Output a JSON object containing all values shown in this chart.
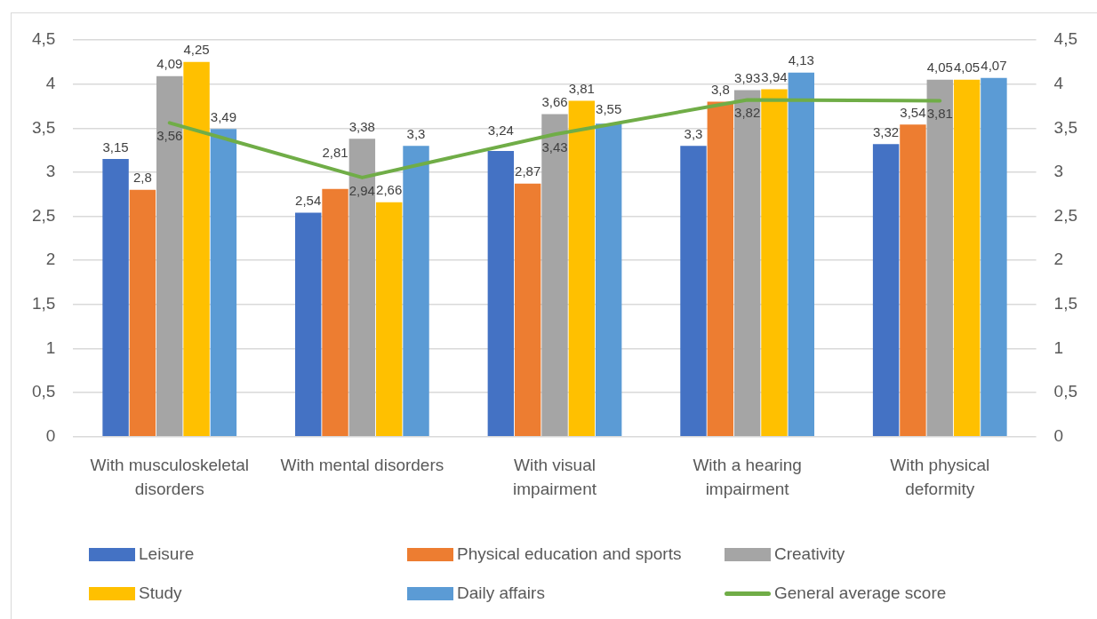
{
  "chart_data": {
    "type": "bar",
    "categories": [
      "With musculoskeletal disorders",
      "With mental disorders",
      "With visual impairment",
      "With a hearing impairment",
      "With physical deformity"
    ],
    "series": [
      {
        "name": "Leisure",
        "color": "#4472c4",
        "values": [
          3.15,
          2.54,
          3.24,
          3.3,
          3.32
        ],
        "value_labels": [
          "3,15",
          "2,54",
          "3,24",
          "3,3",
          "3,32"
        ]
      },
      {
        "name": "Physical education and sports",
        "color": "#ed7d31",
        "values": [
          2.8,
          2.81,
          2.87,
          3.8,
          3.54
        ],
        "value_labels": [
          "2,8",
          "2,81",
          "2,87",
          "3,8",
          "3,54"
        ]
      },
      {
        "name": "Creativity",
        "color": "#a5a5a5",
        "values": [
          4.09,
          3.38,
          3.66,
          3.93,
          4.05
        ],
        "value_labels": [
          "4,09",
          "3,38",
          "3,66",
          "3,93",
          "4,05"
        ]
      },
      {
        "name": "Study",
        "color": "#ffc000",
        "values": [
          4.25,
          2.66,
          3.81,
          3.94,
          4.05
        ],
        "value_labels": [
          "4,25",
          "2,66",
          "3,81",
          "3,94",
          "4,05"
        ]
      },
      {
        "name": "Daily affairs",
        "color": "#5b9bd5",
        "values": [
          3.49,
          3.3,
          3.55,
          4.13,
          4.07
        ],
        "value_labels": [
          "3,49",
          "3,3",
          "3,55",
          "4,13",
          "4,07"
        ]
      },
      {
        "name": "General average score",
        "type": "line",
        "axis": "y2",
        "color": "#70ad47",
        "values": [
          3.56,
          2.94,
          3.43,
          3.82,
          3.81
        ],
        "value_labels": [
          "3,56",
          "2,94",
          "3,43",
          "3,82",
          "3,81"
        ]
      }
    ],
    "ylim": [
      0,
      4.5
    ],
    "yticks": [
      0,
      {
        "value": 0.5,
        "label": "0,5"
      },
      1,
      {
        "value": 1.5,
        "label": "1,5"
      },
      2,
      {
        "value": 2.5,
        "label": "2,5"
      },
      3,
      {
        "value": 3.5,
        "label": "3,5"
      },
      4,
      {
        "value": 4.5,
        "label": "4,5"
      }
    ],
    "y2lim": [
      0,
      4.5
    ],
    "y2ticks": [
      0,
      {
        "value": 0.5,
        "label": "0,5"
      },
      1,
      {
        "value": 1.5,
        "label": "1,5"
      },
      2,
      {
        "value": 2.5,
        "label": "2,5"
      },
      3,
      {
        "value": 3.5,
        "label": "3,5"
      },
      4,
      {
        "value": 4.5,
        "label": "4,5"
      }
    ],
    "grid": "y",
    "legend": "bottom",
    "marker": "none"
  }
}
